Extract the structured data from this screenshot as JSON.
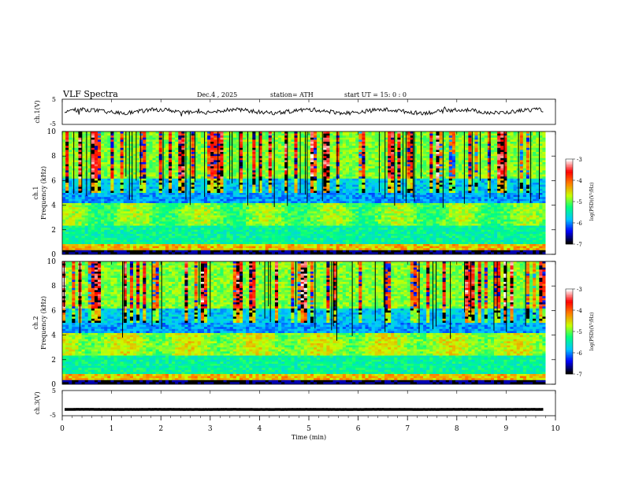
{
  "header": {
    "title": "VLF  Spectra",
    "date": "Dec.4  , 2025",
    "station": "station= ATH",
    "start": "start  UT  =   15: 0  : 0"
  },
  "chart_data": [
    {
      "type": "line",
      "name": "ch1-waveform",
      "ylabel": "ch.1(V)",
      "ylim": [
        -5,
        5
      ],
      "yticks": [
        "5",
        "-5"
      ],
      "xlim": [
        0,
        10
      ],
      "baseline": 0.2
    },
    {
      "type": "heatmap",
      "name": "ch1-spectrogram",
      "ylabel": "ch.1\nFrequency (kHz)",
      "ylim": [
        0,
        10
      ],
      "yticks": [
        "0",
        "2",
        "4",
        "6",
        "8",
        "10"
      ],
      "xlim": [
        0,
        10
      ],
      "colorbar": {
        "label": "log(PSD)(V²/Hz)",
        "range": [
          -7,
          -3
        ],
        "ticks": [
          "-3",
          "-4",
          "-5",
          "-6",
          "-7"
        ]
      }
    },
    {
      "type": "heatmap",
      "name": "ch2-spectrogram",
      "ylabel": "ch.2\nFrequency (kHz)",
      "ylim": [
        0,
        10
      ],
      "yticks": [
        "0",
        "2",
        "4",
        "6",
        "8",
        "10"
      ],
      "xlim": [
        0,
        10
      ],
      "colorbar": {
        "label": "log(PSD)(V²/Hz)",
        "range": [
          -7,
          -3
        ],
        "ticks": [
          "-3",
          "-4",
          "-5",
          "-6",
          "-7"
        ]
      }
    },
    {
      "type": "line",
      "name": "ch3-waveform",
      "ylabel": "ch.3(V)",
      "ylim": [
        -5,
        5
      ],
      "yticks": [
        "5",
        "-5"
      ],
      "xlim": [
        0,
        10
      ],
      "baseline": -2.5
    }
  ],
  "xaxis": {
    "label": "Time  (min)",
    "ticks": [
      "0",
      "1",
      "2",
      "3",
      "4",
      "5",
      "6",
      "7",
      "8",
      "9",
      "10"
    ],
    "data_end": 9.8
  },
  "colormap": [
    "#000000",
    "#0000ff",
    "#00c8ff",
    "#00ff80",
    "#c8ff00",
    "#ff8000",
    "#ff0000",
    "#ffffff"
  ]
}
